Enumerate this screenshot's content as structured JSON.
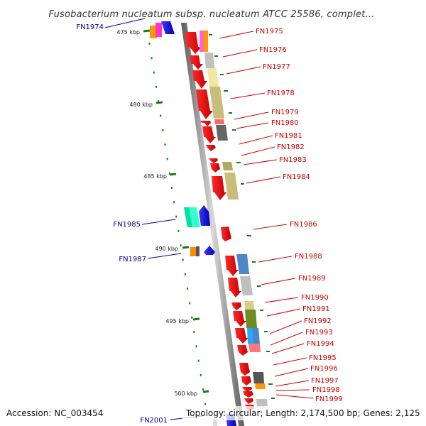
{
  "header": {
    "title": "Fusobacterium nucleatum subsp. nucleatum ATCC 25586, complet..."
  },
  "footer": {
    "accession": "Accession: NC_003454",
    "topology": "Topology: circular; Length: 2,174,500 bp; Genes: 2,125"
  },
  "colors": {
    "forward_label": "#cc0000",
    "reverse_label": "#000099",
    "backbone": "#888888",
    "tick": "#1a7a1a"
  },
  "ticks": [
    "475 kbp",
    "480 kbp",
    "485 kbp",
    "490 kbp",
    "495 kbp",
    "500 kbp"
  ],
  "genes_right": [
    "FN1975",
    "FN1976",
    "FN1977",
    "FN1978",
    "FN1979",
    "FN1980",
    "FN1981",
    "FN1982",
    "FN1983",
    "FN1984",
    "FN1986",
    "FN1988",
    "FN1989",
    "FN1990",
    "FN1991",
    "FN1992",
    "FN1993",
    "FN1994",
    "FN1995",
    "FN1996",
    "FN1997",
    "FN1998",
    "FN1999"
  ],
  "genes_left": [
    "FN1974",
    "FN1985",
    "FN1987",
    "FN2001"
  ]
}
